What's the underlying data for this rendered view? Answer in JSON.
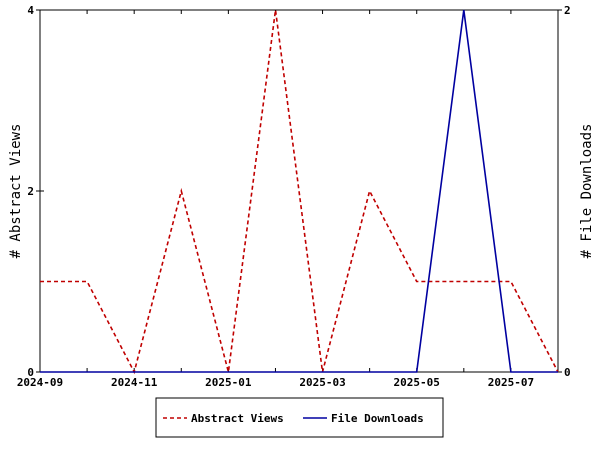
{
  "chart_data": {
    "type": "line",
    "x": [
      "2024-09",
      "2024-10",
      "2024-11",
      "2024-12",
      "2025-01",
      "2025-02",
      "2025-03",
      "2025-04",
      "2025-05",
      "2025-06",
      "2025-07",
      "2025-08"
    ],
    "x_tick_labels": [
      "2024-09",
      "2024-11",
      "2025-01",
      "2025-03",
      "2025-05",
      "2025-07"
    ],
    "ylabel_left": "# Abstract Views",
    "ylabel_right": "# File Downloads",
    "ylim_left": [
      0,
      4
    ],
    "ylim_right": [
      0,
      2
    ],
    "y_ticks_left": [
      "0",
      "2",
      "4"
    ],
    "y_ticks_right": [
      "0",
      "2"
    ],
    "grid": false,
    "legend_position": "bottom-center",
    "series": [
      {
        "name": "Abstract Views",
        "axis": "left",
        "color": "#c00000",
        "dash": "dashed",
        "values": [
          1,
          1,
          0,
          2,
          0,
          4,
          0,
          2,
          1,
          1,
          1,
          0
        ]
      },
      {
        "name": "File Downloads",
        "axis": "right",
        "color": "#0000a0",
        "dash": "solid",
        "values": [
          0,
          0,
          0,
          0,
          0,
          0,
          0,
          0,
          0,
          2,
          0,
          0
        ]
      }
    ]
  }
}
